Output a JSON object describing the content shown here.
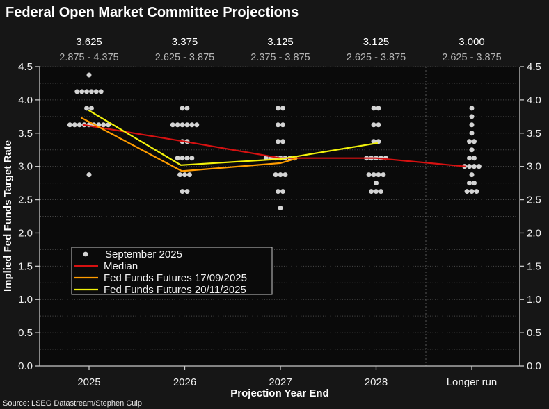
{
  "chart_data": {
    "type": "scatter",
    "title": "Federal Open Market Committee Projections",
    "xlabel": "Projection Year End",
    "ylabel": "Implied Fed Funds Target Rate",
    "source": "Source: LSEG Datastream/Stephen Culp",
    "ylim": [
      0.0,
      4.5
    ],
    "y_tick_step": 0.5,
    "y_grid_step": 0.25,
    "grid": true,
    "y_ticks": [
      "4.5",
      "4.0",
      "3.5",
      "3.0",
      "2.5",
      "2.0",
      "1.5",
      "1.0",
      "0.5",
      "0.0"
    ],
    "categories": [
      "2025",
      "2026",
      "2027",
      "2028",
      "Longer run"
    ],
    "column_labels": {
      "medians": [
        "3.625",
        "3.375",
        "3.125",
        "3.125",
        "3.000"
      ],
      "ranges": [
        "2.875 - 4.375",
        "2.625 - 3.875",
        "2.375 - 3.875",
        "2.625 - 3.875",
        "2.625 - 3.875"
      ]
    },
    "dot_color": "#d4d4d4",
    "dot_groups": [
      {
        "category": "2025",
        "dots": [
          {
            "value": 4.375,
            "count": 1
          },
          {
            "value": 4.125,
            "count": 6
          },
          {
            "value": 3.875,
            "count": 2
          },
          {
            "value": 3.625,
            "count": 9
          },
          {
            "value": 2.875,
            "count": 1
          }
        ]
      },
      {
        "category": "2026",
        "dots": [
          {
            "value": 3.875,
            "count": 2
          },
          {
            "value": 3.625,
            "count": 6
          },
          {
            "value": 3.375,
            "count": 2
          },
          {
            "value": 3.125,
            "count": 4
          },
          {
            "value": 2.875,
            "count": 3
          },
          {
            "value": 2.625,
            "count": 2
          }
        ]
      },
      {
        "category": "2027",
        "dots": [
          {
            "value": 3.875,
            "count": 2
          },
          {
            "value": 3.625,
            "count": 2
          },
          {
            "value": 3.375,
            "count": 2
          },
          {
            "value": 3.125,
            "count": 7
          },
          {
            "value": 2.875,
            "count": 3
          },
          {
            "value": 2.625,
            "count": 2
          },
          {
            "value": 2.375,
            "count": 1
          }
        ]
      },
      {
        "category": "2028",
        "dots": [
          {
            "value": 3.875,
            "count": 2
          },
          {
            "value": 3.625,
            "count": 2
          },
          {
            "value": 3.375,
            "count": 2
          },
          {
            "value": 3.125,
            "count": 5
          },
          {
            "value": 2.875,
            "count": 4
          },
          {
            "value": 2.75,
            "count": 1
          },
          {
            "value": 2.625,
            "count": 3
          }
        ]
      },
      {
        "category": "Longer run",
        "dots": [
          {
            "value": 3.875,
            "count": 1
          },
          {
            "value": 3.75,
            "count": 1
          },
          {
            "value": 3.625,
            "count": 1
          },
          {
            "value": 3.5,
            "count": 1
          },
          {
            "value": 3.375,
            "count": 2
          },
          {
            "value": 3.25,
            "count": 1
          },
          {
            "value": 3.125,
            "count": 2
          },
          {
            "value": 3.0,
            "count": 4
          },
          {
            "value": 2.875,
            "count": 1
          },
          {
            "value": 2.75,
            "count": 2
          },
          {
            "value": 2.625,
            "count": 3
          }
        ]
      }
    ],
    "series": [
      {
        "name": "Median",
        "color": "#d61111",
        "points": [
          [
            -0.06,
            3.625
          ],
          [
            1,
            3.375
          ],
          [
            2,
            3.125
          ],
          [
            3,
            3.125
          ],
          [
            3.93,
            3.0
          ]
        ]
      },
      {
        "name": "Fed Funds Futures 17/09/2025",
        "color": "#ff9c00",
        "points": [
          [
            -0.08,
            3.73
          ],
          [
            0.97,
            2.93
          ],
          [
            2.0,
            3.05
          ],
          [
            2.17,
            3.12
          ]
        ]
      },
      {
        "name": "Fed Funds Futures 20/11/2025",
        "color": "#f2f20a",
        "points": [
          [
            0.0,
            3.84
          ],
          [
            0.96,
            3.02
          ],
          [
            2.0,
            3.11
          ],
          [
            3.01,
            3.35
          ]
        ]
      }
    ],
    "legend": [
      {
        "label": "September 2025",
        "marker": "dot",
        "color": "#d4d4d4"
      },
      {
        "label": "Median",
        "marker": "line",
        "color": "#d61111"
      },
      {
        "label": "Fed Funds Futures 17/09/2025",
        "marker": "line",
        "color": "#ff9c00"
      },
      {
        "label": "Fed Funds Futures 20/11/2025",
        "marker": "line",
        "color": "#f2f20a"
      }
    ],
    "legend_position": "lower-left",
    "separator_after_category": "2028"
  }
}
